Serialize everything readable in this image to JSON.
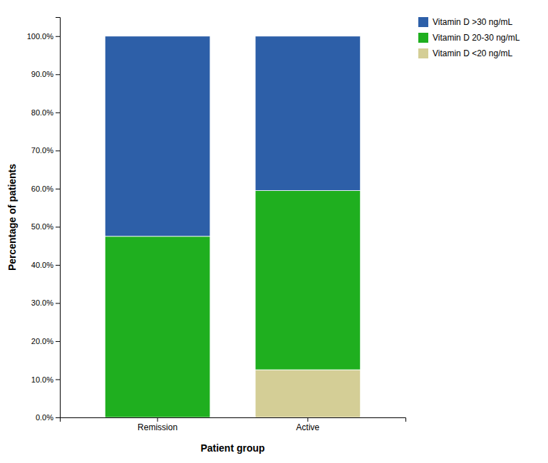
{
  "chart_data": {
    "type": "bar",
    "stacked": true,
    "categories": [
      "Remission",
      "Active"
    ],
    "series": [
      {
        "name": "Vitamin D <20 ng/mL",
        "color": "#D4CE96",
        "values": [
          0.0,
          12.5
        ]
      },
      {
        "name": "Vitamin D 20-30 ng/mL",
        "color": "#1FAF1F",
        "values": [
          47.5,
          47.0
        ]
      },
      {
        "name": "Vitamin D >30 ng/mL",
        "color": "#2D5FA8",
        "values": [
          52.5,
          40.5
        ]
      }
    ],
    "xlabel": "Patient group",
    "ylabel": "Percentage of patients",
    "ylim": [
      0,
      105
    ],
    "yticks": [
      {
        "value": 0,
        "label": "0.0%"
      },
      {
        "value": 10,
        "label": "10.0%"
      },
      {
        "value": 20,
        "label": "20.0%"
      },
      {
        "value": 30,
        "label": "30.0%"
      },
      {
        "value": 40,
        "label": "40.0%"
      },
      {
        "value": 50,
        "label": "50.0%"
      },
      {
        "value": 60,
        "label": "60.0%"
      },
      {
        "value": 70,
        "label": "70.0%"
      },
      {
        "value": 80,
        "label": "80.0%"
      },
      {
        "value": 90,
        "label": "90.0%"
      },
      {
        "value": 100,
        "label": "100.0%"
      }
    ],
    "grid": false,
    "legend": "upper right"
  }
}
